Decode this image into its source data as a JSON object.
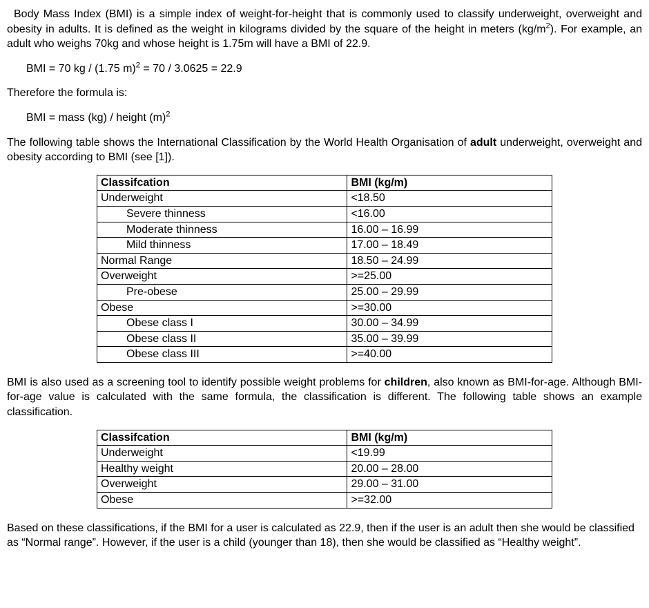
{
  "intro_prefix": "Body Mass Index (BMI) is a simple index of weight-for-height that is commonly used to classify underweight, overweight and obesity in adults. It is defined as the weight in kilograms divided by the square of the height in meters (kg/m",
  "intro_sup": "2",
  "intro_suffix": "). For example, an adult who weighs 70kg and whose height is 1.75m will have a BMI of 22.9.",
  "ex_formula_prefix": "BMI = 70 kg / (1.75 m)",
  "ex_formula_sup": "2",
  "ex_formula_suffix": " = 70 / 3.0625 = 22.9",
  "therefore_text": "Therefore the formula is:",
  "gen_formula_prefix": "BMI  = mass (kg) / height (m)",
  "gen_formula_sup": "2",
  "table_intro_prefix": "The following table shows the International Classification by the World Health Organisation of ",
  "table_intro_bold": "adult",
  "table_intro_suffix": " underweight, overweight and obesity according to BMI (see [1]).",
  "table1": {
    "header_class": "Classifcation",
    "header_bmi": "BMI (kg/m)",
    "rows": [
      {
        "label": "Underweight",
        "indent": 0,
        "bmi": "<18.50"
      },
      {
        "label": "Severe thinness",
        "indent": 1,
        "bmi": "<16.00"
      },
      {
        "label": "Moderate thinness",
        "indent": 1,
        "bmi": "16.00 – 16.99"
      },
      {
        "label": "Mild thinness",
        "indent": 1,
        "bmi": "17.00 – 18.49"
      },
      {
        "label": "Normal Range",
        "indent": 0,
        "bmi": "18.50 – 24.99"
      },
      {
        "label": "Overweight",
        "indent": 0,
        "bmi": ">=25.00"
      },
      {
        "label": "Pre-obese",
        "indent": 1,
        "bmi": "25.00 – 29.99"
      },
      {
        "label": "Obese",
        "indent": 0,
        "bmi": ">=30.00"
      },
      {
        "label": "Obese class I",
        "indent": 1,
        "bmi": "30.00 – 34.99"
      },
      {
        "label": "Obese class II",
        "indent": 1,
        "bmi": "35.00 – 39.99"
      },
      {
        "label": "Obese class III",
        "indent": 1,
        "bmi": ">=40.00"
      }
    ]
  },
  "children_intro_prefix": "BMI is also used as a screening tool to identify possible weight problems for ",
  "children_intro_bold": "children",
  "children_intro_suffix": ", also known as BMI-for-age. Although BMI-for-age value is calculated with the same formula, the classification is different. The following table shows an example classification.",
  "table2": {
    "header_class": "Classifcation",
    "header_bmi": "BMI (kg/m)",
    "rows": [
      {
        "label": "Underweight",
        "indent": 0,
        "bmi": "<19.99"
      },
      {
        "label": "Healthy weight",
        "indent": 0,
        "bmi": "20.00 – 28.00"
      },
      {
        "label": "Overweight",
        "indent": 0,
        "bmi": "29.00 – 31.00"
      },
      {
        "label": "Obese",
        "indent": 0,
        "bmi": ">=32.00"
      }
    ]
  },
  "conclusion_text": "Based on these classifications, if the BMI for a user is calculated as 22.9, then if the user is an adult then she would be classified as “Normal range”. However, if the user is a child (younger than 18), then she would be classified as “Healthy weight”."
}
